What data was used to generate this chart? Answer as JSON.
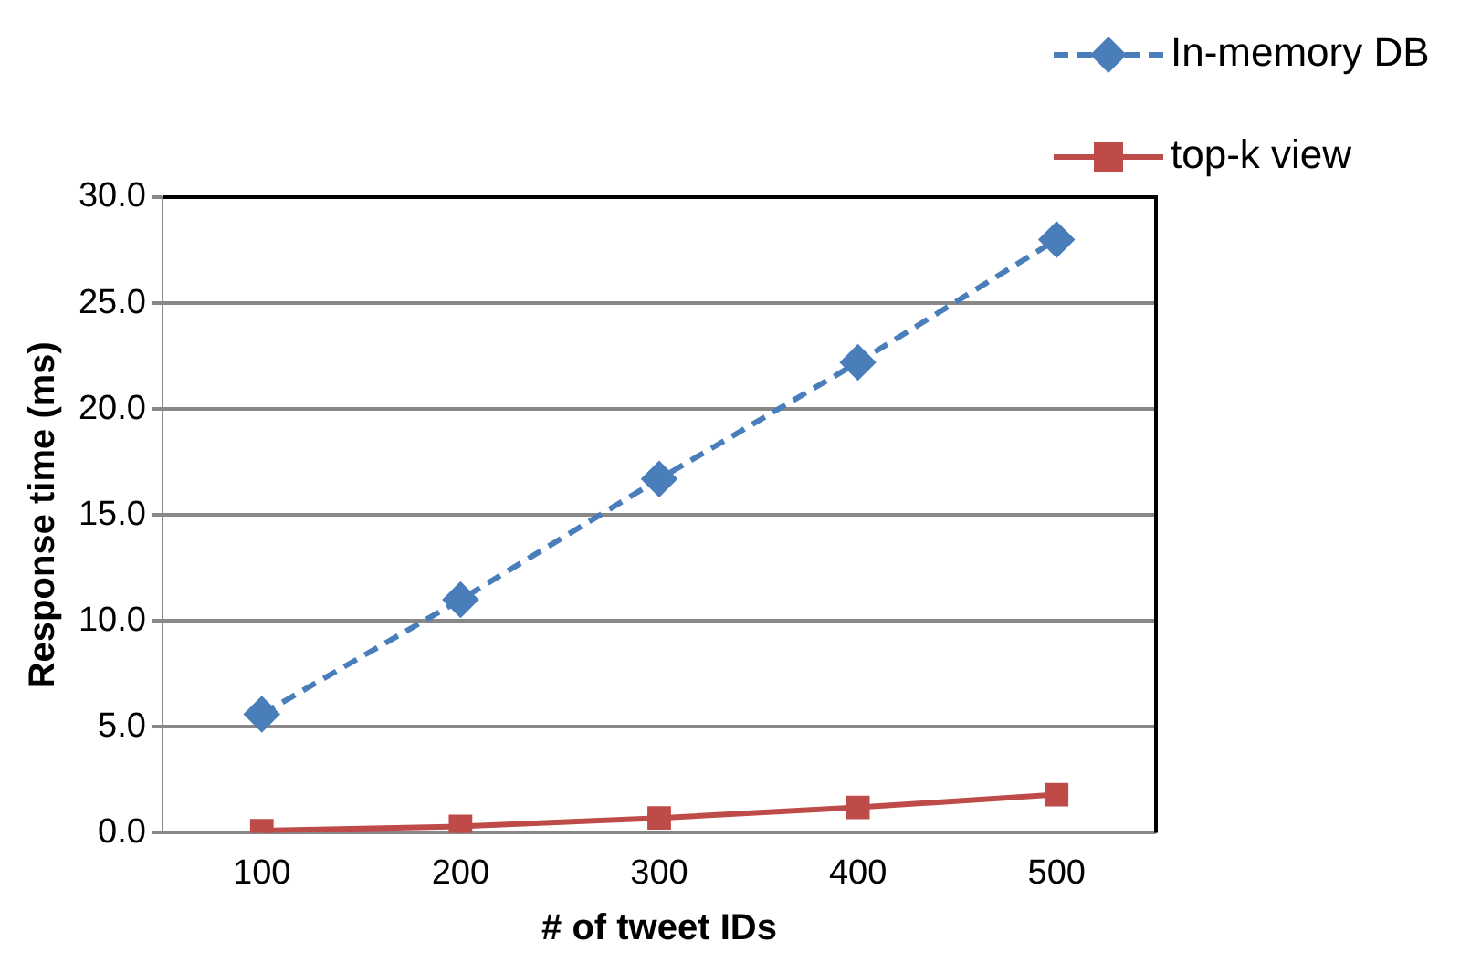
{
  "chart_data": {
    "type": "line",
    "xlabel": "# of tweet IDs",
    "ylabel": "Response time (ms)",
    "categories": [
      "100",
      "200",
      "300",
      "400",
      "500"
    ],
    "series": [
      {
        "name": "In-memory DB",
        "color": "#4a7ebb",
        "values": [
          5.6,
          11.0,
          16.7,
          22.2,
          28.0
        ],
        "marker": "diamond",
        "line_style": "dashed"
      },
      {
        "name": "top-k view",
        "color": "#be4b48",
        "values": [
          0.1,
          0.3,
          0.7,
          1.2,
          1.8
        ],
        "marker": "square",
        "line_style": "solid"
      }
    ],
    "ylim": [
      0,
      30
    ],
    "yticks": [
      {
        "value": 0,
        "label": "0.0"
      },
      {
        "value": 5,
        "label": "5.0"
      },
      {
        "value": 10,
        "label": "10.0"
      },
      {
        "value": 15,
        "label": "15.0"
      },
      {
        "value": 20,
        "label": "20.0"
      },
      {
        "value": 25,
        "label": "25.0"
      },
      {
        "value": 30,
        "label": "30.0"
      }
    ],
    "grid": "y",
    "legend": "top right"
  }
}
